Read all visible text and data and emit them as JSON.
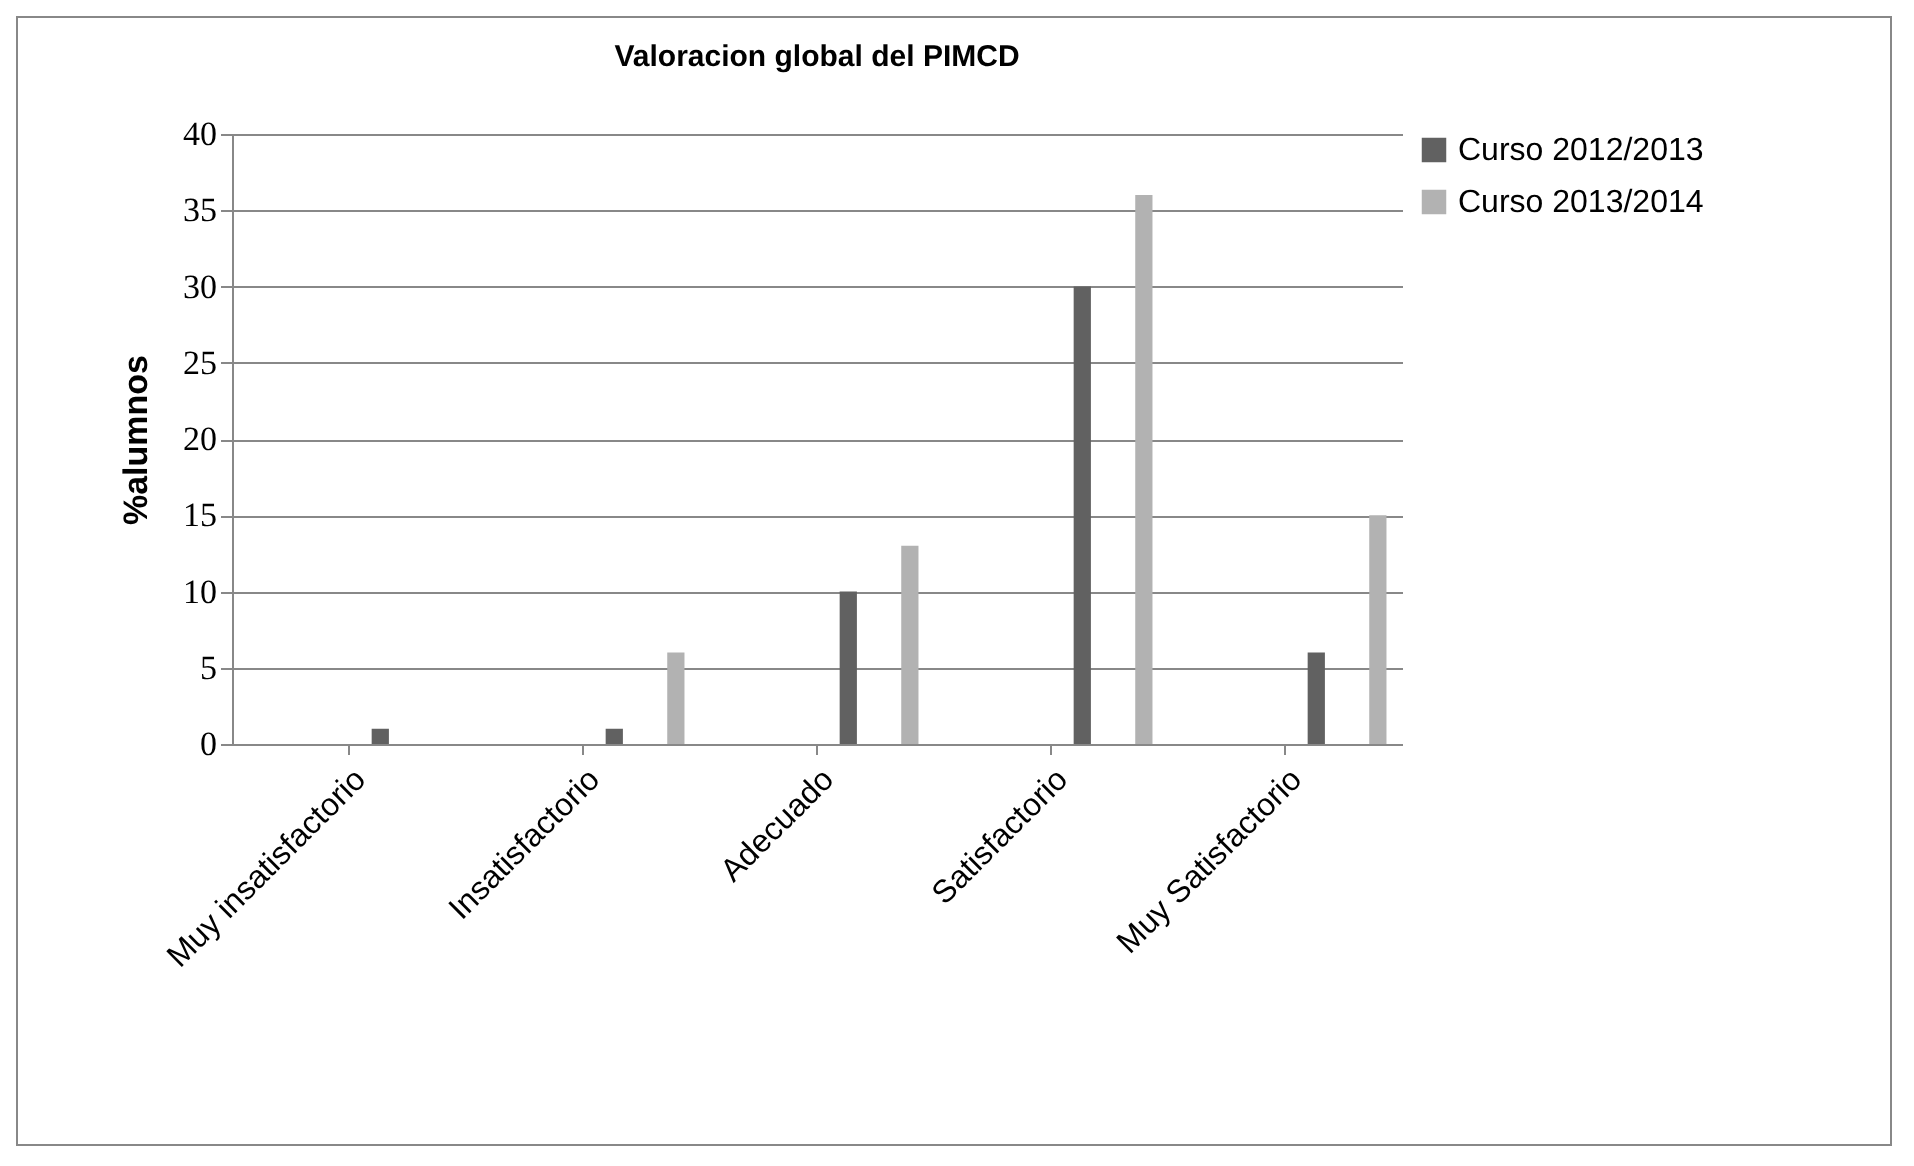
{
  "chart_data": {
    "type": "bar",
    "title": "Valoracion global del PIMCD",
    "ylabel": "%alumnos",
    "categories": [
      "Muy insatisfactorio",
      "Insatisfactorio",
      "Adecuado",
      "Satisfactorio",
      "Muy Satisfactorio"
    ],
    "series": [
      {
        "name": "Curso 2012/2013",
        "color": "#616161",
        "values": [
          1,
          1,
          10,
          30,
          6
        ]
      },
      {
        "name": "Curso 2013/2014",
        "color": "#b2b2b2",
        "values": [
          0,
          6,
          13,
          36,
          15
        ]
      }
    ],
    "ylim": [
      0,
      40
    ],
    "yticks": [
      0,
      5,
      10,
      15,
      20,
      25,
      30,
      35,
      40
    ],
    "grid": "y",
    "legend": "right"
  }
}
